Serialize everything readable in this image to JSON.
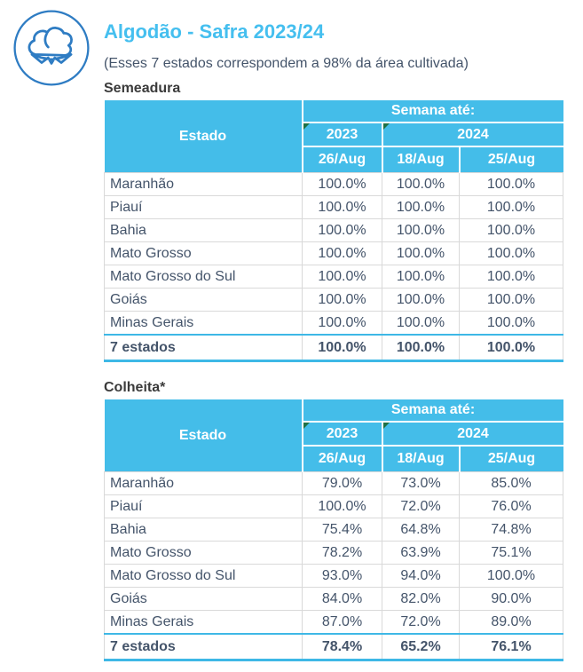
{
  "header": {
    "icon": "cotton-icon",
    "title": "Algodão - Safra 2023/24",
    "subtitle": "(Esses 7 estados correspondem a 98% da área cultivada)"
  },
  "colors": {
    "header_blue": "#44BDE9",
    "title_blue": "#45BFEF",
    "total_border_blue": "#3EB8E6",
    "body_text": "#44546A",
    "section_text": "#3B3B3B",
    "grid_line": "#D9D9D9",
    "comment_triangle_green": "#1E7145",
    "icon_stroke_blue": "#2E7CC3"
  },
  "tables": [
    {
      "section_label": "Semeadura",
      "header": {
        "estado": "Estado",
        "semana": "Semana até:",
        "year_2023": "2023",
        "year_2024": "2024",
        "dates": [
          "26/Aug",
          "18/Aug",
          "25/Aug"
        ]
      },
      "rows": [
        {
          "estado": "Maranhão",
          "values": [
            "100.0%",
            "100.0%",
            "100.0%"
          ]
        },
        {
          "estado": "Piauí",
          "values": [
            "100.0%",
            "100.0%",
            "100.0%"
          ]
        },
        {
          "estado": "Bahia",
          "values": [
            "100.0%",
            "100.0%",
            "100.0%"
          ]
        },
        {
          "estado": "Mato Grosso",
          "values": [
            "100.0%",
            "100.0%",
            "100.0%"
          ]
        },
        {
          "estado": "Mato Grosso do Sul",
          "values": [
            "100.0%",
            "100.0%",
            "100.0%"
          ]
        },
        {
          "estado": "Goiás",
          "values": [
            "100.0%",
            "100.0%",
            "100.0%"
          ]
        },
        {
          "estado": "Minas Gerais",
          "values": [
            "100.0%",
            "100.0%",
            "100.0%"
          ]
        }
      ],
      "total": {
        "estado": "7 estados",
        "values": [
          "100.0%",
          "100.0%",
          "100.0%"
        ]
      }
    },
    {
      "section_label": "Colheita*",
      "header": {
        "estado": "Estado",
        "semana": "Semana até:",
        "year_2023": "2023",
        "year_2024": "2024",
        "dates": [
          "26/Aug",
          "18/Aug",
          "25/Aug"
        ]
      },
      "rows": [
        {
          "estado": "Maranhão",
          "values": [
            "79.0%",
            "73.0%",
            "85.0%"
          ]
        },
        {
          "estado": "Piauí",
          "values": [
            "100.0%",
            "72.0%",
            "76.0%"
          ]
        },
        {
          "estado": "Bahia",
          "values": [
            "75.4%",
            "64.8%",
            "74.8%"
          ]
        },
        {
          "estado": "Mato Grosso",
          "values": [
            "78.2%",
            "63.9%",
            "75.1%"
          ]
        },
        {
          "estado": "Mato Grosso do Sul",
          "values": [
            "93.0%",
            "94.0%",
            "100.0%"
          ]
        },
        {
          "estado": "Goiás",
          "values": [
            "84.0%",
            "82.0%",
            "90.0%"
          ]
        },
        {
          "estado": "Minas Gerais",
          "values": [
            "87.0%",
            "72.0%",
            "89.0%"
          ]
        }
      ],
      "total": {
        "estado": "7 estados",
        "values": [
          "78.4%",
          "65.2%",
          "76.1%"
        ]
      }
    }
  ]
}
